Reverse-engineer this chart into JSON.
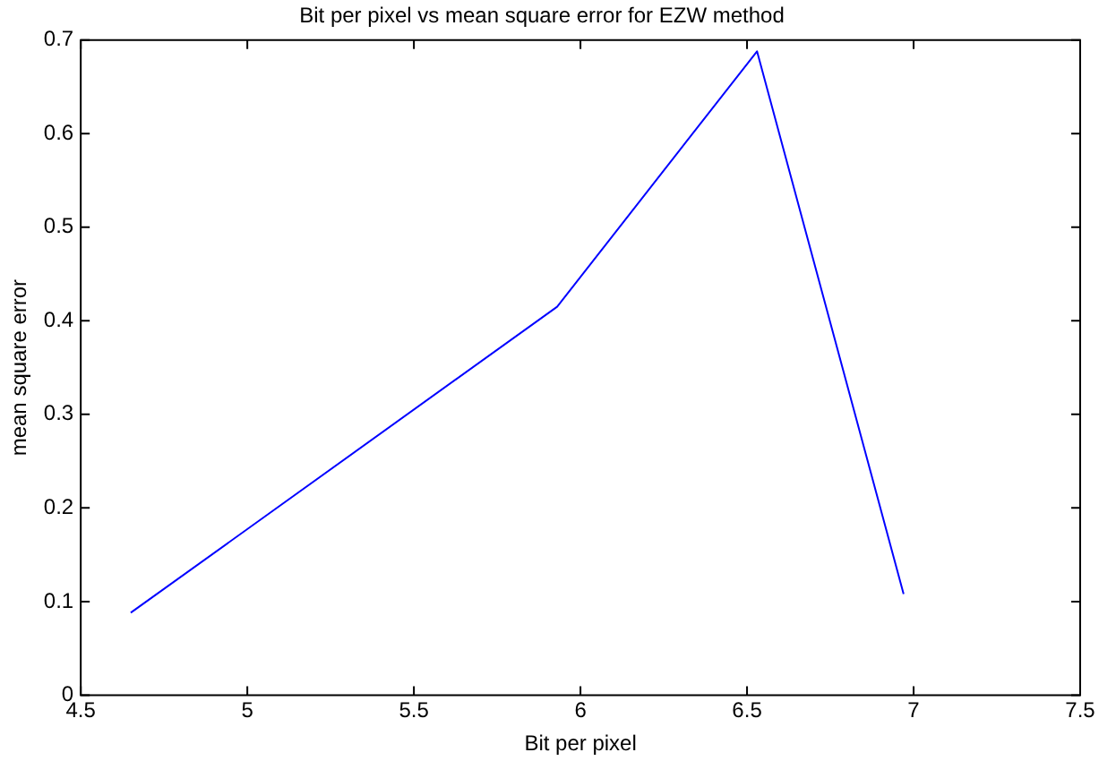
{
  "chart_data": {
    "type": "line",
    "title": "Bit per pixel vs mean square error for EZW method",
    "xlabel": "Bit per pixel",
    "ylabel": "mean square error",
    "series": [
      {
        "color": "#0000ff",
        "x": [
          4.65,
          5.93,
          6.53,
          6.97
        ],
        "values": [
          0.088,
          0.415,
          0.688,
          0.108
        ]
      }
    ],
    "xlim": [
      4.5,
      7.5
    ],
    "xticks": [
      4.5,
      5,
      5.5,
      6,
      6.5,
      7,
      7.5
    ],
    "ylim": [
      0,
      0.7
    ],
    "yticks": [
      0,
      0.1,
      0.2,
      0.3,
      0.4,
      0.5,
      0.6,
      0.7
    ],
    "grid": false,
    "legend": false,
    "marker": "none",
    "line_style": "solid"
  }
}
